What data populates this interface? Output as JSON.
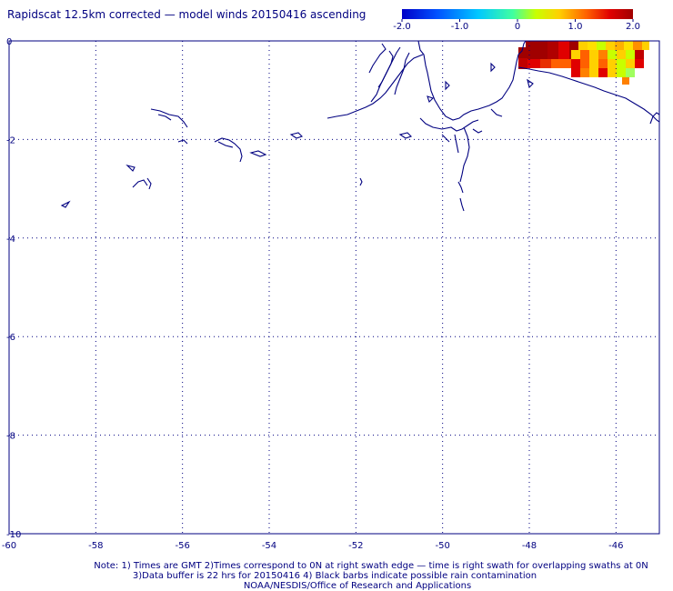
{
  "title": "Rapidscat 12.5km corrected — model winds 20150416 ascending",
  "colorbar": {
    "tick_labels": [
      "-2.0",
      "-1.0",
      "0",
      "1.0",
      "2.0"
    ],
    "tick_values": [
      -2,
      -1,
      0,
      1,
      2
    ],
    "range": [
      -2,
      2
    ],
    "colors": [
      "#0000c8",
      "#0050ff",
      "#00c8ff",
      "#40ffa0",
      "#c8ff00",
      "#ffd000",
      "#ff6000",
      "#e00000",
      "#a00000"
    ]
  },
  "map": {
    "x_axis": {
      "ticks": [
        -60,
        -58,
        -56,
        -54,
        -52,
        -50,
        -48,
        -46
      ],
      "tick_labels": [
        "-60",
        "-58",
        "-56",
        "-54",
        "-52",
        "-50",
        "-48",
        "-46"
      ],
      "range": [
        -60,
        -45
      ]
    },
    "y_axis": {
      "ticks": [
        0,
        -2,
        -4,
        -6,
        -8,
        -10
      ],
      "tick_labels": [
        "0",
        "-2",
        "-4",
        "-6",
        "-8",
        "-10"
      ],
      "range": [
        -10,
        0
      ]
    },
    "grid": "dotted",
    "coastline_color": "#000080",
    "frame_color": "#000080"
  },
  "footnote": {
    "line1": "Note: 1) Times are GMT 2)Times correspond to 0N at right swath edge — time is right swath for overlapping swaths at 0N",
    "line2": "3)Data buffer is 22 hrs for 20150416 4) Black barbs indicate possible rain contamination",
    "line3": "NOAA/NESDIS/Office of Research and Applications"
  }
}
